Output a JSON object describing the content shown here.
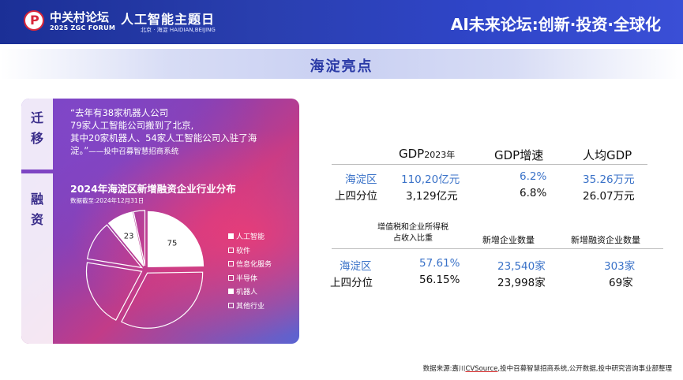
{
  "header": {
    "forum_name": "中关村论坛",
    "forum_sub": "2025 ZGC FORUM",
    "event_title": "人工智能主题日",
    "event_location": "北京 · 海淀  HAIDIAN,BEIJING",
    "slogan": "AI未来论坛:创新·投资·全球化"
  },
  "section_title": "海淀亮点",
  "card": {
    "tab_migrate": [
      "迁",
      "移"
    ],
    "tab_finance": [
      "融",
      "资"
    ],
    "quote_lines": [
      "“去年有38家机器人公司",
      "79家人工智能公司搬到了北京,",
      "其中20家机器人、54家人工智能公司入驻了海",
      "淀。”"
    ],
    "quote_source": "——投中召募智慧招商系统"
  },
  "chart_data": {
    "type": "pie",
    "title": "2024年海淀区新增融资企业行业分布",
    "subtitle": "数据截至:2024年12月31日",
    "categories": [
      "人工智能",
      "软件",
      "信息化服务",
      "半导体",
      "机器人",
      "其他行业"
    ],
    "values": [
      75,
      100,
      60,
      35,
      23,
      10
    ],
    "data_labels": [
      "75",
      "",
      "",
      "",
      "23",
      ""
    ],
    "colors": [
      "#ffffff",
      "rgba(255,255,255,0)",
      "rgba(255,255,255,0)",
      "rgba(255,255,255,0)",
      "#ffffff",
      "rgba(255,255,255,0)"
    ],
    "legend_position": "right"
  },
  "table1": {
    "col_gdp_main": "GDP",
    "col_gdp_year": "2023年",
    "col_growth": "GDP增速",
    "col_per_capita": "人均GDP",
    "rows": [
      {
        "label": "海淀区",
        "gdp": "110,20亿元",
        "growth": "6.2%",
        "per_capita": "35.26万元"
      },
      {
        "label": "上四分位",
        "gdp": "3,129亿元",
        "growth": "6.8%",
        "per_capita": "26.07万元"
      }
    ]
  },
  "table2": {
    "col_tax_line1": "增值税和企业所得税",
    "col_tax_line2": "占收入比重",
    "col_new_firms": "新增企业数量",
    "col_new_funded": "新增融资企业数量",
    "rows": [
      {
        "label": "海淀区",
        "tax": "57.61%",
        "new_firms": "23,540家",
        "new_funded": "303家"
      },
      {
        "label": "上四分位",
        "tax": "56.15%",
        "new_firms": "23,998家",
        "new_funded": "69家"
      }
    ]
  },
  "footer": {
    "prefix": "数据来源:嘉川",
    "cvsource": "CVSource",
    "rest": ",投中召募智慧招商系统,公开数据,投中研究咨询事业部整理"
  }
}
